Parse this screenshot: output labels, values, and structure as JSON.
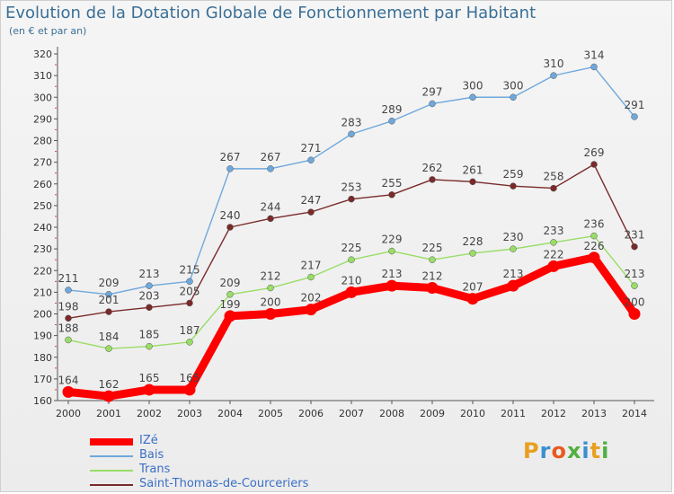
{
  "title": "Evolution de la Dotation Globale de Fonctionnement par Habitant",
  "subtitle": "(en € et par an)",
  "logo": {
    "letters": [
      "P",
      "r",
      "o",
      "x",
      "i",
      "t",
      "i"
    ],
    "colors": [
      "#e8a020",
      "#3a8fd0",
      "#e85a20",
      "#50b040",
      "#3a8fd0",
      "#e8a020",
      "#50b040"
    ]
  },
  "chart_data": {
    "type": "line",
    "x": [
      "2000",
      "2001",
      "2002",
      "2003",
      "2004",
      "2005",
      "2006",
      "2007",
      "2008",
      "2009",
      "2010",
      "2011",
      "2012",
      "2013",
      "2014"
    ],
    "ylim": [
      160,
      320
    ],
    "yticks": [
      "160",
      "170",
      "180",
      "190",
      "200",
      "210",
      "220",
      "230",
      "240",
      "250",
      "260",
      "270",
      "280",
      "290",
      "300",
      "310",
      "320"
    ],
    "grid": false,
    "legend_position": "bottom-left",
    "series": [
      {
        "name": "IZé",
        "color": "#ff0000",
        "values": [
          164,
          162,
          165,
          165,
          199,
          200,
          202,
          210,
          213,
          212,
          207,
          213,
          222,
          226,
          200
        ],
        "labels": [
          "164",
          "162",
          "165",
          "165",
          "199",
          "200",
          "202",
          "210",
          "213",
          "212",
          "207",
          "213",
          "222",
          "226",
          "200"
        ]
      },
      {
        "name": "Bais",
        "color": "#6fa8dc",
        "values": [
          211,
          209,
          213,
          215,
          267,
          267,
          271,
          283,
          289,
          297,
          300,
          300,
          310,
          314,
          291
        ],
        "labels": [
          "211",
          "209",
          "213",
          "215",
          "267",
          "267",
          "271",
          "283",
          "289",
          "297",
          "300",
          "300",
          "310",
          "314",
          "291"
        ]
      },
      {
        "name": "Trans",
        "color": "#99dd66",
        "values": [
          188,
          184,
          185,
          187,
          209,
          212,
          217,
          225,
          229,
          225,
          228,
          230,
          233,
          236,
          213
        ],
        "labels": [
          "188",
          "184",
          "185",
          "187",
          "209",
          "212",
          "217",
          "225",
          "229",
          "225",
          "228",
          "230",
          "233",
          "236",
          "213"
        ]
      },
      {
        "name": "Saint-Thomas-de-Courceriers",
        "color": "#7a2a2a",
        "values": [
          198,
          201,
          203,
          205,
          240,
          244,
          247,
          253,
          255,
          262,
          261,
          259,
          258,
          269,
          231
        ],
        "labels": [
          "198",
          "201",
          "203",
          "205",
          "240",
          "244",
          "247",
          "253",
          "255",
          "262",
          "261",
          "259",
          "258",
          "269",
          "231"
        ]
      }
    ]
  }
}
